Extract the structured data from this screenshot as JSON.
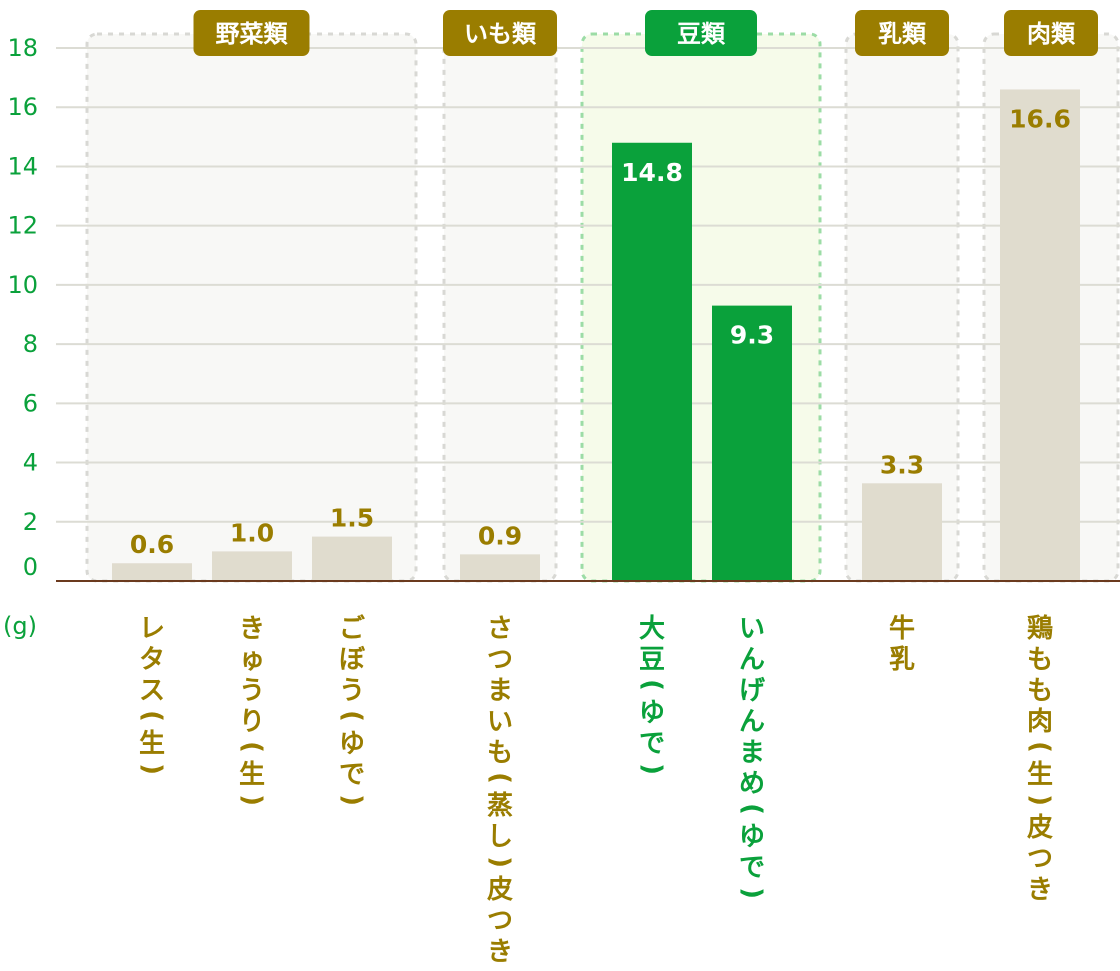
{
  "chart_data": {
    "type": "bar",
    "y_unit_label": "(g)",
    "ylim": [
      0,
      18
    ],
    "yticks": [
      0,
      2,
      4,
      6,
      8,
      10,
      12,
      14,
      16,
      18
    ],
    "grid": true,
    "groups": [
      {
        "label": "野菜類",
        "highlight": false,
        "categories": [
          "レタス（生）",
          "きゅうり（生）",
          "ごぼう（ゆで）"
        ],
        "values": [
          0.6,
          1.0,
          1.5
        ],
        "value_labels": [
          "0.6",
          "1.0",
          "1.5"
        ]
      },
      {
        "label": "いも類",
        "highlight": false,
        "categories": [
          "さつまいも（蒸し）皮つき"
        ],
        "values": [
          0.9
        ],
        "value_labels": [
          "0.9"
        ]
      },
      {
        "label": "豆類",
        "highlight": true,
        "categories": [
          "大豆（ゆで）",
          "いんげんまめ（ゆで）"
        ],
        "values": [
          14.8,
          9.3
        ],
        "value_labels": [
          "14.8",
          "9.3"
        ]
      },
      {
        "label": "乳類",
        "highlight": false,
        "categories": [
          "牛乳"
        ],
        "values": [
          3.3
        ],
        "value_labels": [
          "3.3"
        ]
      },
      {
        "label": "肉類",
        "highlight": false,
        "categories": [
          "鶏もも肉（生）皮つき"
        ],
        "values": [
          16.6
        ],
        "value_labels": [
          "16.6"
        ]
      }
    ],
    "colors": {
      "highlight_bar": "#0aa13b",
      "normal_bar": "#e0dcce",
      "normal_badge": "#9a7d00",
      "highlight_badge": "#0aa13b",
      "normal_text": "#9a7d00",
      "highlight_text": "#0aa13b",
      "axis_tick_text": "#0aa13b",
      "baseline": "#6b3a1e",
      "gridline": "#dcdcd4",
      "normal_group_fill": "#f8f8f6",
      "highlight_group_fill": "#f6fbea",
      "normal_group_border": "#d8d8d4",
      "highlight_group_border": "#9cdca6"
    }
  }
}
